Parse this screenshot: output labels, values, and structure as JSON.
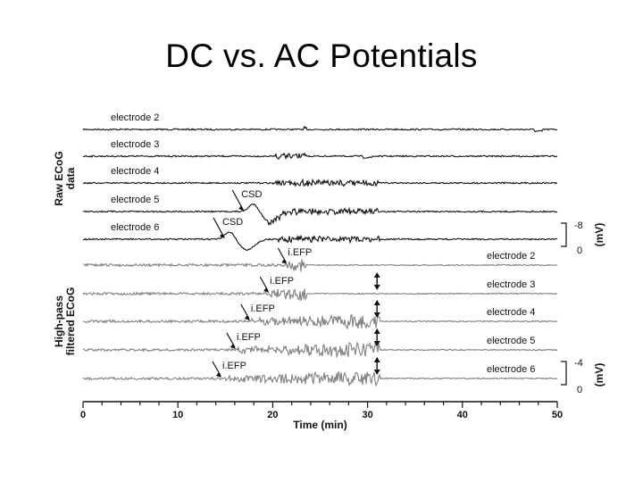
{
  "slide": {
    "title": "DC vs. AC Potentials"
  },
  "chart_data": {
    "type": "line",
    "xlabel": "Time (min)",
    "xlim": [
      0,
      50
    ],
    "xticks": [
      0,
      10,
      20,
      30,
      40,
      50
    ],
    "panels": [
      {
        "name": "raw",
        "ylabel_lines": [
          "Raw ECoG",
          "data"
        ],
        "color": "#111111",
        "scale_bar": {
          "top_label": "-8",
          "bottom_label": "0",
          "unit": "(mV)"
        },
        "series": [
          {
            "name": "electrode 2",
            "label_side": "left",
            "annotation": "",
            "annotation_x": null,
            "csd_min": null,
            "burst_start_min": 23.2,
            "burst_end_min": 23.6,
            "end_min": 50
          },
          {
            "name": "electrode 3",
            "label_side": "left",
            "annotation": "",
            "annotation_x": null,
            "csd_min": null,
            "burst_start_min": 20.3,
            "burst_end_min": 23.6,
            "end_min": 50
          },
          {
            "name": "electrode 4",
            "label_side": "left",
            "annotation": "",
            "annotation_x": null,
            "csd_min": null,
            "burst_start_min": 20.0,
            "burst_end_min": 31.3,
            "end_min": 50
          },
          {
            "name": "electrode 5",
            "label_side": "left",
            "annotation": "CSD",
            "annotation_x": 16.5,
            "csd_min": 19.0,
            "burst_start_min": 19.5,
            "burst_end_min": 31.3,
            "end_min": 50
          },
          {
            "name": "electrode 6",
            "label_side": "left",
            "annotation": "CSD",
            "annotation_x": 14.5,
            "csd_min": 16.5,
            "burst_start_min": 20.5,
            "burst_end_min": 31.3,
            "end_min": 50
          }
        ]
      },
      {
        "name": "filtered",
        "ylabel_lines": [
          "High-pass",
          "filtered ECoG"
        ],
        "color": "#808080",
        "scale_bar": {
          "top_label": "-4",
          "bottom_label": "0",
          "unit": "(mV)"
        },
        "series": [
          {
            "name": "electrode 2",
            "label_side": "right",
            "annotation": "i.EFP",
            "annotation_x": 21.5,
            "burst_start_min": 21.5,
            "burst_end_min": 23.6,
            "end_min": 50
          },
          {
            "name": "electrode 3",
            "label_side": "right",
            "annotation": "i.EFP",
            "annotation_x": 19.6,
            "burst_start_min": 19.5,
            "burst_end_min": 23.6,
            "end_min": 50
          },
          {
            "name": "electrode 4",
            "label_side": "right",
            "annotation": "i.EFP",
            "annotation_x": 17.6,
            "burst_start_min": 17.5,
            "burst_end_min": 31.3,
            "end_min": 50
          },
          {
            "name": "electrode 5",
            "label_side": "right",
            "annotation": "i.EFP",
            "annotation_x": 16.1,
            "burst_start_min": 16.0,
            "burst_end_min": 31.3,
            "end_min": 50
          },
          {
            "name": "electrode 6",
            "label_side": "right",
            "annotation": "i.EFP",
            "annotation_x": 14.6,
            "burst_start_min": 15.0,
            "burst_end_min": 31.3,
            "end_min": 50
          }
        ],
        "double_arrow_x_min": 31.0
      }
    ]
  }
}
